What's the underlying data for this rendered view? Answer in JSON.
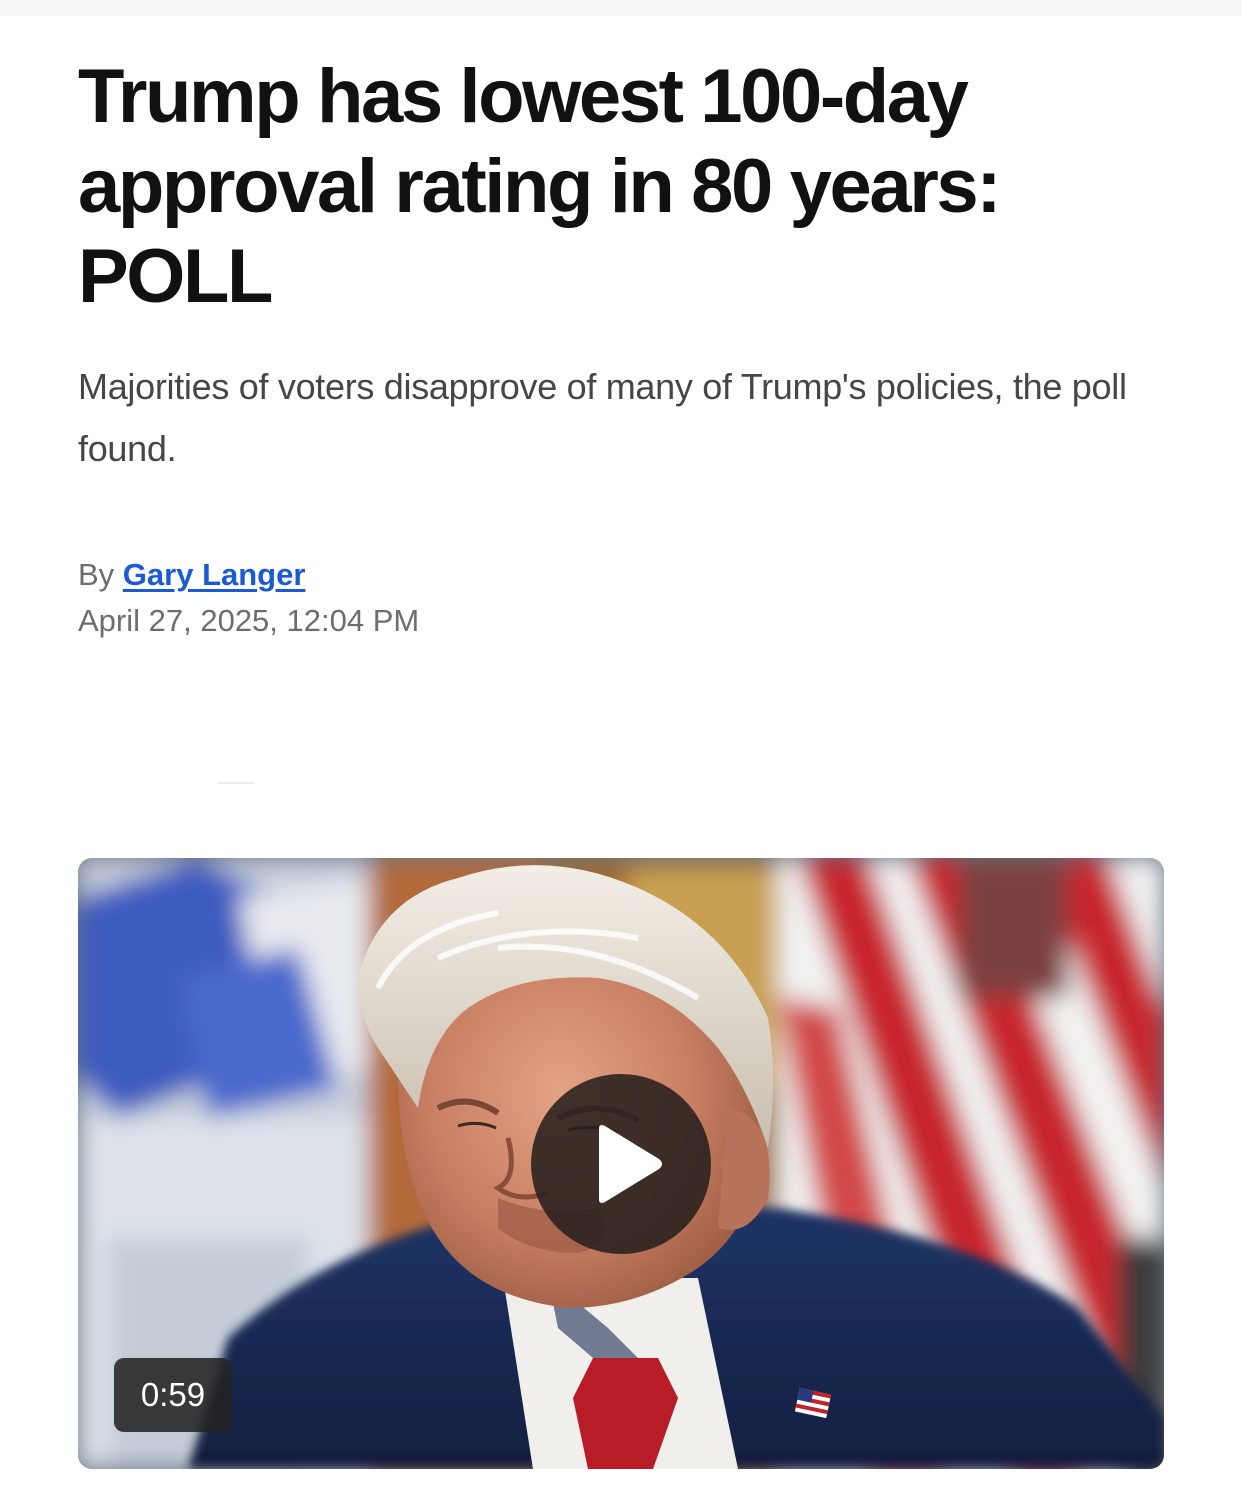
{
  "article": {
    "headline": "Trump has lowest 100-day approval rating in 80 years: POLL",
    "dek": "Majorities of voters disapprove of many of Trump's policies, the poll found.",
    "byline_prefix": "By ",
    "author": "Gary Langer",
    "timestamp": "April 27, 2025, 12:04 PM"
  },
  "video": {
    "duration": "0:59",
    "play_icon": "play-icon"
  }
}
